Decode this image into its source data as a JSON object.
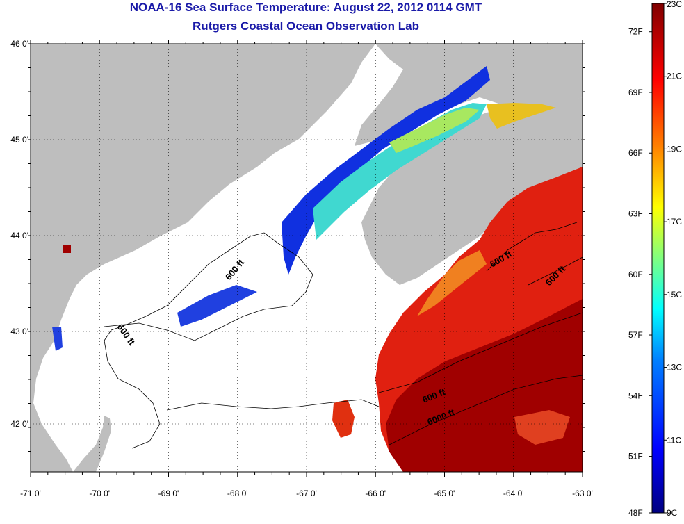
{
  "title": "NOAA-16 Sea Surface Temperature:  August 22, 2012 0114 GMT",
  "subtitle": "Rutgers Coastal Ocean Observation Lab",
  "axes": {
    "lon_labels": [
      "-71 0'",
      "-70 0'",
      "-69 0'",
      "-68 0'",
      "-67 0'",
      "-66 0'",
      "-65 0'",
      "-64 0'",
      "-63 0'"
    ],
    "lat_labels": [
      "46 0'",
      "45 0'",
      "44 0'",
      "43 0'",
      "42 0'"
    ]
  },
  "colorbar": {
    "celsius_labels": [
      "23C",
      "21C",
      "19C",
      "17C",
      "15C",
      "13C",
      "11C",
      "9C"
    ],
    "fahrenheit_labels": [
      "72F",
      "69F",
      "66F",
      "63F",
      "60F",
      "57F",
      "54F",
      "51F",
      "48F"
    ],
    "colors": [
      "#000080",
      "#0000ff",
      "#0080ff",
      "#00ffff",
      "#80ff80",
      "#ffff00",
      "#ff8000",
      "#ff0000",
      "#800000"
    ]
  },
  "contour_labels": [
    "600 ft",
    "600 ft",
    "600 ft",
    "600 ft",
    "600 ft",
    "6000 ft"
  ],
  "colors": {
    "land": "#bebebe",
    "no_data": "#ffffff",
    "title": "#1a1aa8"
  }
}
